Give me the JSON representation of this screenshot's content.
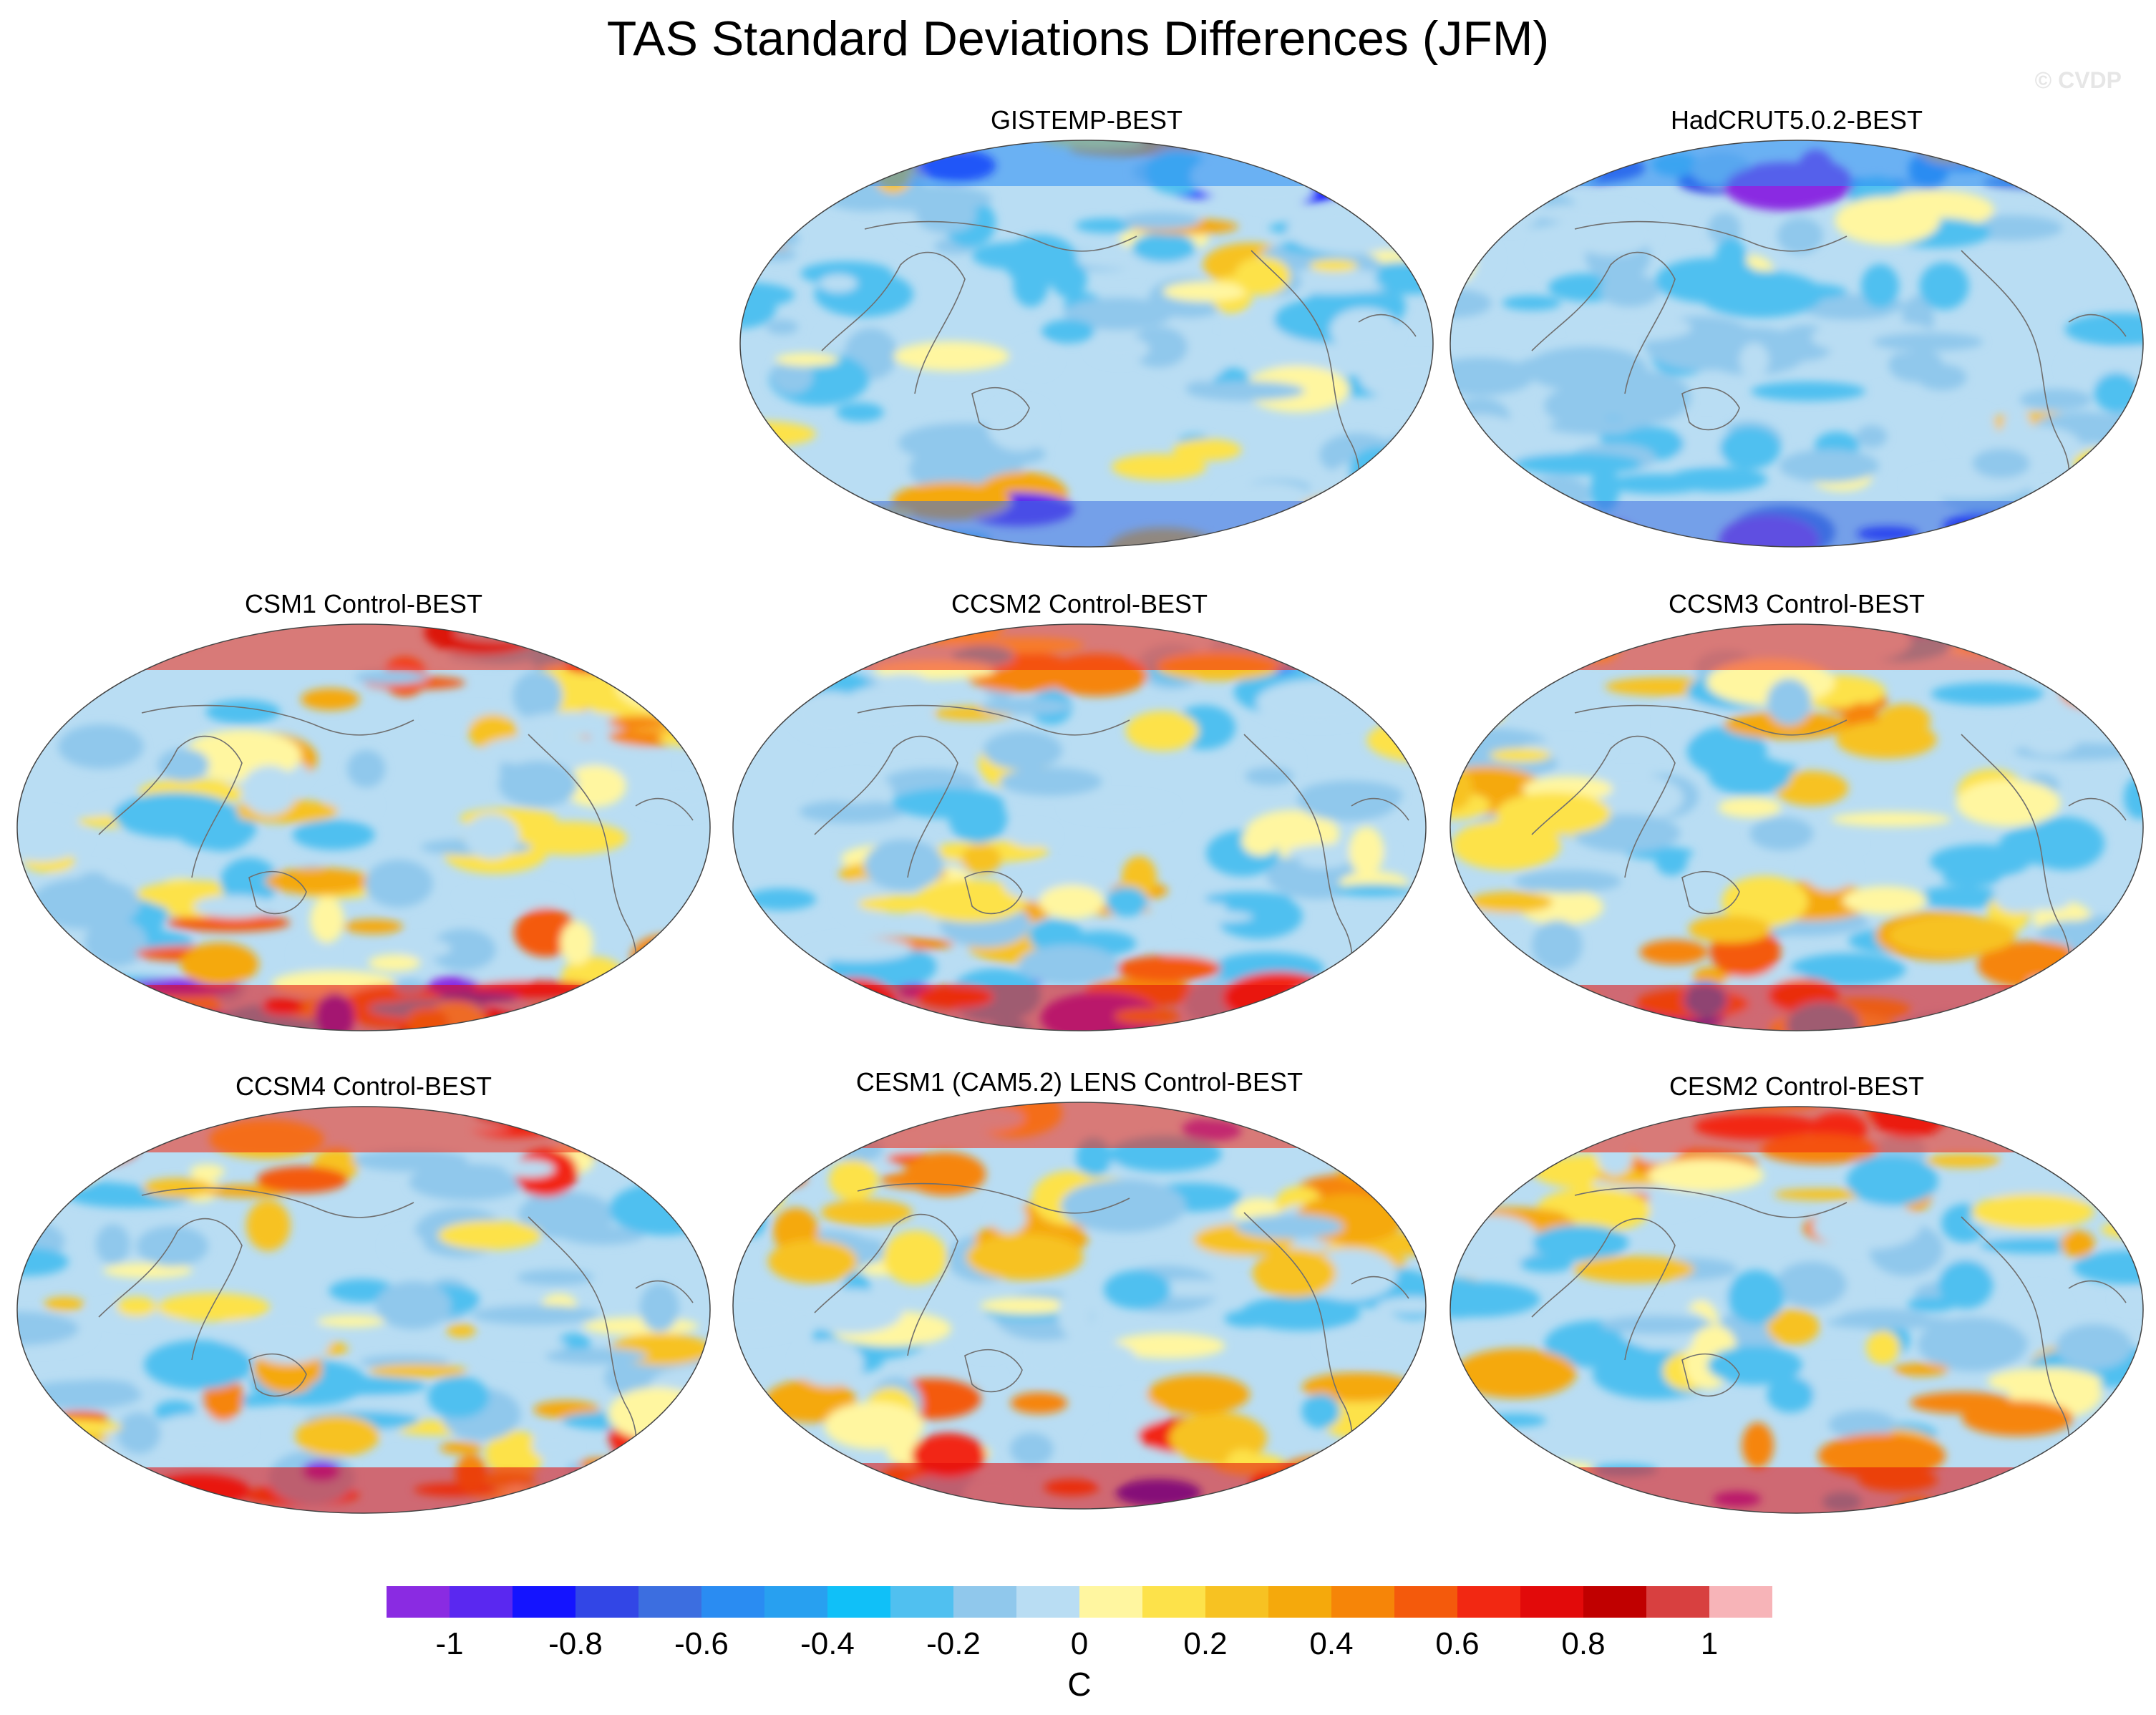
{
  "title": "TAS Standard Deviations Differences (JFM)",
  "copyright": "© CVDP",
  "panels": [
    {
      "title": "GISTEMP-BEST",
      "warmth": 0.35,
      "polar_blue": 0.8,
      "seed": 11
    },
    {
      "title": "HadCRUT5.0.2-BEST",
      "warmth": 0.2,
      "polar_blue": 1.0,
      "seed": 23
    },
    {
      "title": "CSM1 Control-BEST",
      "warmth": 0.75,
      "polar_blue": 0.1,
      "seed": 37
    },
    {
      "title": "CCSM2 Control-BEST",
      "warmth": 0.6,
      "polar_blue": 0.5,
      "seed": 41
    },
    {
      "title": "CCSM3 Control-BEST",
      "warmth": 0.75,
      "polar_blue": 0.2,
      "seed": 53
    },
    {
      "title": "CCSM4 Control-BEST",
      "warmth": 0.8,
      "polar_blue": 0.15,
      "seed": 67
    },
    {
      "title": "CESM1 (CAM5.2) LENS Control-BEST",
      "warmth": 0.8,
      "polar_blue": 0.2,
      "seed": 71
    },
    {
      "title": "CESM2 Control-BEST",
      "warmth": 0.7,
      "polar_blue": 0.1,
      "seed": 89
    }
  ],
  "colorbar": {
    "unit": "C",
    "colors": [
      "#8a2be2",
      "#5a28f0",
      "#1414ff",
      "#3246e6",
      "#3c6ee0",
      "#2a8cf2",
      "#28a0f0",
      "#10c0f8",
      "#50c0f0",
      "#90c8ec",
      "#b9ddf3",
      "#fff6a0",
      "#fde24a",
      "#f7c222",
      "#f5a90c",
      "#f68508",
      "#f45a0c",
      "#f22812",
      "#e20a0a",
      "#c00000",
      "#d84040",
      "#f7b4b8"
    ],
    "tick_labels": [
      "-1",
      "-0.8",
      "-0.6",
      "-0.4",
      "-0.2",
      "0",
      "0.2",
      "0.4",
      "0.6",
      "0.8",
      "1"
    ]
  }
}
